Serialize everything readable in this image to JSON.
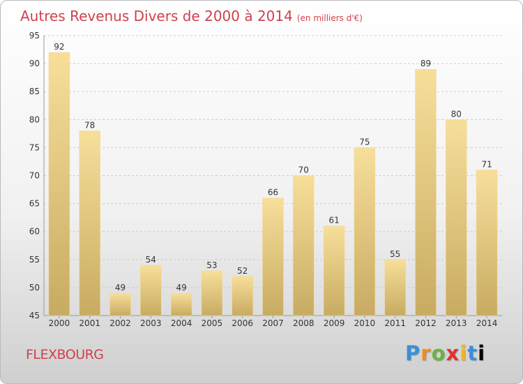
{
  "title": "Autres Revenus Divers de 2000 à 2014",
  "title_unit": "(en milliers d'€)",
  "place": "FLEXBOURG",
  "logo": "Proxiti",
  "colors": {
    "title": "#d0404e",
    "bar_light": "#f7df9a",
    "bar_dark": "#c8ab62",
    "grid": "#cccccc",
    "axis_text": "#333333"
  },
  "chart_data": {
    "type": "bar",
    "categories": [
      "2000",
      "2001",
      "2002",
      "2003",
      "2004",
      "2005",
      "2006",
      "2007",
      "2008",
      "2009",
      "2010",
      "2011",
      "2012",
      "2013",
      "2014"
    ],
    "values": [
      92,
      78,
      49,
      54,
      49,
      53,
      52,
      66,
      70,
      61,
      75,
      55,
      89,
      80,
      71
    ],
    "title": "Autres Revenus Divers de 2000 à 2014",
    "xlabel": "",
    "ylabel": "",
    "ylim": [
      45,
      95
    ],
    "yticks": [
      45,
      50,
      55,
      60,
      65,
      70,
      75,
      80,
      85,
      90,
      95
    ],
    "grid": "horizontal-dashed",
    "data_labels": true,
    "legend": "none"
  }
}
